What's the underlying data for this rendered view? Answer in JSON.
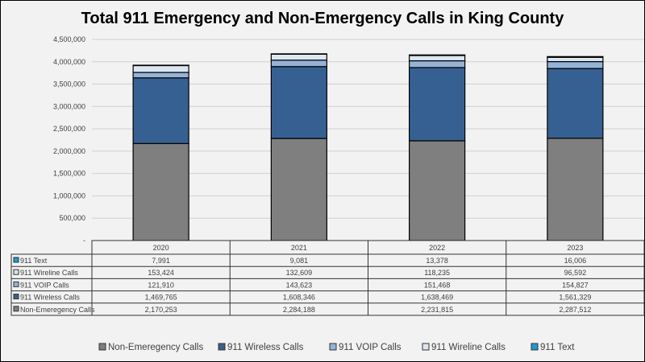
{
  "chart_data": {
    "type": "bar",
    "stacked": true,
    "title": "Total 911 Emergency and Non-Emergency Calls in King County",
    "categories": [
      "2020",
      "2021",
      "2022",
      "2023"
    ],
    "ylim": [
      0,
      4500000
    ],
    "yticks": [
      0,
      500000,
      1000000,
      1500000,
      2000000,
      2500000,
      3000000,
      3500000,
      4000000,
      4500000
    ],
    "ytick_labels": [
      "-",
      "500,000",
      "1,000,000",
      "1,500,000",
      "2,000,000",
      "2,500,000",
      "3,000,000",
      "3,500,000",
      "4,000,000",
      "4,500,000"
    ],
    "grid": true,
    "legend_placement": "bottom",
    "series": [
      {
        "name": "Non-Emeregency Calls",
        "color": "#7f7f7f",
        "values": [
          2170253,
          2284188,
          2231815,
          2287512
        ],
        "labels": [
          "2,170,253",
          "2,284,188",
          "2,231,815",
          "2,287,512"
        ]
      },
      {
        "name": "911 Wireless Calls",
        "color": "#376092",
        "values": [
          1469765,
          1608346,
          1638469,
          1561329
        ],
        "labels": [
          "1,469,765",
          "1,608,346",
          "1,638,469",
          "1,561,329"
        ]
      },
      {
        "name": "911 VOIP Calls",
        "color": "#95b3d7",
        "values": [
          121910,
          143623,
          151468,
          154827
        ],
        "labels": [
          "121,910",
          "143,623",
          "151,468",
          "154,827"
        ]
      },
      {
        "name": "911 Wireline Calls",
        "color": "#dce6f2",
        "values": [
          153424,
          132609,
          118235,
          96592
        ],
        "labels": [
          "153,424",
          "132,609",
          "118,235",
          "96,592"
        ]
      },
      {
        "name": "911 Text",
        "color": "#1f9ad6",
        "values": [
          7991,
          9081,
          13378,
          16006
        ],
        "labels": [
          "7,991",
          "9,081",
          "13,378",
          "16,006"
        ]
      }
    ]
  }
}
